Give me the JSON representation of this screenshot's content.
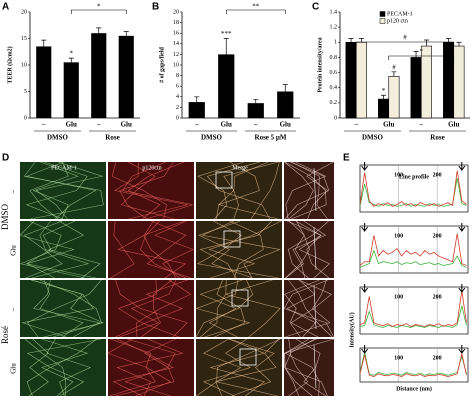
{
  "panels": [
    "A",
    "B",
    "C",
    "D",
    "E"
  ],
  "chart_data": [
    {
      "type": "bar",
      "ylabel": "TEER (Ωcm2)",
      "categories": [
        "–",
        "Glu",
        "–",
        "Glu"
      ],
      "groups": [
        "DMSO",
        "Rose"
      ],
      "values": [
        13.5,
        10.5,
        16,
        15.5
      ],
      "errors": [
        1.2,
        0.8,
        1,
        0.8
      ],
      "color": "#000000",
      "ylim": [
        0,
        20
      ],
      "yticks": [
        0,
        5,
        10,
        15,
        20
      ],
      "annotations": [
        "*",
        "*"
      ]
    },
    {
      "type": "bar",
      "ylabel": "# of gaps/field",
      "categories": [
        "–",
        "Glu",
        "–",
        "Glu"
      ],
      "groups": [
        "DMSO",
        "Rose 5 μM"
      ],
      "values": [
        3,
        12,
        2.8,
        5
      ],
      "errors": [
        1,
        3,
        0.7,
        1.3
      ],
      "color": "#000000",
      "ylim": [
        0,
        20
      ],
      "yticks": [
        0,
        2,
        4,
        6,
        8,
        10,
        12,
        14,
        16,
        18,
        20
      ],
      "annotations": [
        "***",
        "**"
      ]
    },
    {
      "type": "groupedbar",
      "ylabel": "Protein intensity/area",
      "categories": [
        "–",
        "Glu",
        "–",
        "Glu"
      ],
      "groups": [
        "DMSO",
        "Rose"
      ],
      "series": [
        {
          "name": "PECAM-1",
          "color": "#000000",
          "values": [
            1.0,
            0.25,
            0.8,
            1.0
          ],
          "errors": [
            0.05,
            0.05,
            0.08,
            0.05
          ]
        },
        {
          "name": "p120 ctn",
          "color": "#f3eedb",
          "values": [
            1.0,
            0.55,
            0.95,
            0.95
          ],
          "errors": [
            0.05,
            0.06,
            0.08,
            0.05
          ]
        }
      ],
      "ylim": [
        0,
        1.4
      ],
      "yticks": [
        0,
        0.2,
        0.4,
        0.6,
        0.8,
        1.0,
        1.2,
        1.4
      ],
      "legend": "upper right",
      "annotations": [
        "*",
        "#",
        "#",
        "*"
      ]
    },
    {
      "type": "line",
      "title": "Line profile",
      "x": [
        0,
        12,
        24,
        36,
        48,
        60,
        72,
        84,
        96,
        108,
        120,
        132,
        144,
        156,
        168,
        180,
        192,
        204,
        216,
        228,
        240,
        252,
        264,
        276
      ],
      "xlim": [
        0,
        280
      ],
      "xticks": [
        100,
        200
      ],
      "ylim": [
        0,
        250
      ],
      "series": [
        {
          "name": "PECAM-1",
          "color": "#3cb43c",
          "values": [
            30,
            150,
            50,
            40,
            30,
            45,
            35,
            40,
            30,
            35,
            45,
            30,
            40,
            35,
            30,
            45,
            35,
            40,
            30,
            35,
            40,
            180,
            45,
            35
          ]
        },
        {
          "name": "p120ctn",
          "color": "#d23c28",
          "values": [
            40,
            210,
            60,
            30,
            45,
            35,
            50,
            30,
            40,
            55,
            35,
            45,
            30,
            50,
            40,
            35,
            45,
            30,
            40,
            50,
            35,
            220,
            60,
            40
          ]
        }
      ]
    },
    {
      "type": "line",
      "x": [
        0,
        12,
        24,
        36,
        48,
        60,
        72,
        84,
        96,
        108,
        120,
        132,
        144,
        156,
        168,
        180,
        192,
        204,
        216,
        228,
        240,
        252,
        264,
        276
      ],
      "xlim": [
        0,
        280
      ],
      "xticks": [
        100,
        200
      ],
      "ylim": [
        0,
        250
      ],
      "series": [
        {
          "name": "PECAM-1",
          "color": "#3cb43c",
          "values": [
            30,
            40,
            50,
            120,
            50,
            60,
            55,
            50,
            60,
            45,
            55,
            50,
            60,
            45,
            50,
            55,
            45,
            50,
            40,
            45,
            50,
            90,
            40,
            30
          ]
        },
        {
          "name": "p120ctn",
          "color": "#d23c28",
          "values": [
            40,
            60,
            60,
            200,
            90,
            120,
            100,
            110,
            130,
            90,
            120,
            100,
            110,
            90,
            120,
            100,
            110,
            90,
            80,
            70,
            60,
            210,
            50,
            40
          ]
        }
      ]
    },
    {
      "type": "line",
      "x": [
        0,
        12,
        24,
        36,
        48,
        60,
        72,
        84,
        96,
        108,
        120,
        132,
        144,
        156,
        168,
        180,
        192,
        204,
        216,
        228,
        240,
        252,
        264,
        276
      ],
      "xlim": [
        0,
        280
      ],
      "xticks": [
        100,
        200
      ],
      "ylim": [
        0,
        250
      ],
      "series": [
        {
          "name": "PECAM-1",
          "color": "#3cb43c",
          "values": [
            40,
            45,
            120,
            50,
            40,
            35,
            45,
            40,
            35,
            45,
            40,
            35,
            45,
            40,
            35,
            45,
            40,
            35,
            45,
            40,
            35,
            50,
            150,
            45
          ]
        },
        {
          "name": "p120ctn",
          "color": "#d23c28",
          "values": [
            50,
            60,
            200,
            60,
            50,
            45,
            55,
            40,
            50,
            45,
            55,
            40,
            50,
            45,
            40,
            50,
            45,
            55,
            40,
            50,
            45,
            60,
            230,
            60
          ]
        }
      ]
    },
    {
      "type": "line",
      "x": [
        0,
        12,
        24,
        36,
        48,
        60,
        72,
        84,
        96,
        108,
        120,
        132,
        144,
        156,
        168,
        180,
        192,
        204,
        216,
        228,
        240,
        252,
        264,
        276
      ],
      "xlim": [
        0,
        280
      ],
      "xticks": [
        100,
        200
      ],
      "ylim": [
        0,
        250
      ],
      "xlabel": "Distance (nm)",
      "ylabel": "Intensity(AU)",
      "series": [
        {
          "name": "PECAM-1",
          "color": "#3cb43c",
          "values": [
            70,
            220,
            60,
            50,
            70,
            60,
            55,
            65,
            60,
            50,
            70,
            60,
            55,
            65,
            50,
            60,
            55,
            65,
            60,
            50,
            60,
            70,
            190,
            60
          ]
        },
        {
          "name": "p120ctn",
          "color": "#d23c28",
          "values": [
            60,
            200,
            50,
            40,
            60,
            50,
            45,
            55,
            50,
            40,
            60,
            50,
            45,
            55,
            40,
            50,
            45,
            55,
            50,
            40,
            50,
            60,
            210,
            50
          ]
        }
      ]
    }
  ],
  "micrographs": {
    "columns": [
      "PECAM-1",
      "p120ctn",
      "Merge"
    ],
    "rows": [
      "–",
      "Glu",
      "–",
      "Glu"
    ],
    "groups": [
      "DMSO",
      "Rosé"
    ]
  }
}
